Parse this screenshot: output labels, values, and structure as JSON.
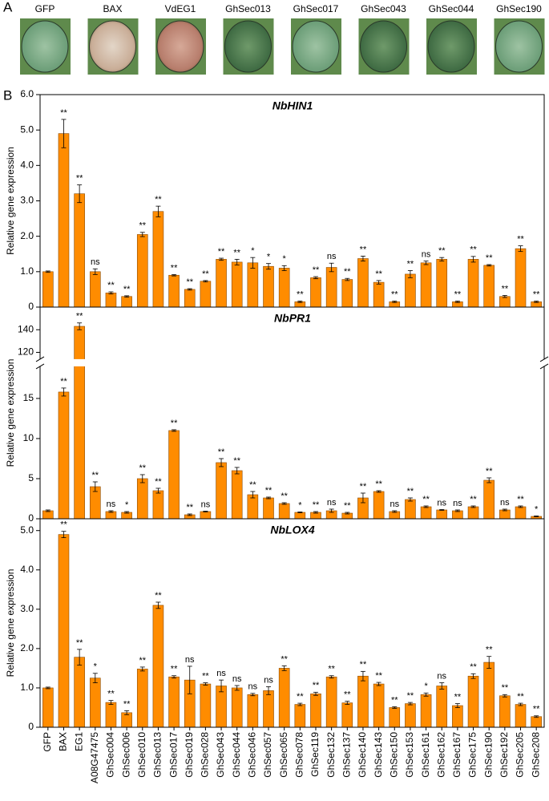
{
  "panel_labels": [
    "A",
    "B"
  ],
  "leaf_panel": {
    "labels": [
      "GFP",
      "BAX",
      "VdEG1",
      "GhSec013",
      "GhSec017",
      "GhSec043",
      "GhSec044",
      "GhSec190"
    ]
  },
  "chart_data": [
    {
      "type": "bar",
      "title": "NbHIN1",
      "y_label": "Relative gene expression",
      "color": "#ff8c00",
      "ylim": [
        0,
        6
      ],
      "yticks": [
        0,
        {
          "value": 1,
          "label": "1.0"
        },
        {
          "value": 2,
          "label": "2.0"
        },
        {
          "value": 3,
          "label": "3.0"
        },
        {
          "value": 4,
          "label": "4.0"
        },
        {
          "value": 5,
          "label": "5.0"
        },
        {
          "value": 6,
          "label": "6.0"
        }
      ],
      "values": [
        1.0,
        4.9,
        3.2,
        1.0,
        0.4,
        0.3,
        2.05,
        2.7,
        0.9,
        0.5,
        0.73,
        1.35,
        1.27,
        1.25,
        1.15,
        1.1,
        0.15,
        0.83,
        1.12,
        0.78,
        1.37,
        0.7,
        0.15,
        0.93,
        1.25,
        1.35,
        0.15,
        1.35,
        1.18,
        0.3,
        1.65,
        0.15
      ],
      "errors": [
        0.02,
        0.4,
        0.25,
        0.08,
        0.03,
        0.02,
        0.06,
        0.15,
        0.02,
        0.02,
        0.02,
        0.03,
        0.08,
        0.15,
        0.08,
        0.07,
        0.02,
        0.03,
        0.12,
        0.03,
        0.07,
        0.05,
        0.02,
        0.1,
        0.05,
        0.05,
        0.02,
        0.08,
        0.02,
        0.03,
        0.08,
        0.02
      ],
      "significance": [
        null,
        "**",
        "**",
        "ns",
        "**",
        "**",
        "**",
        "**",
        "**",
        "**",
        "**",
        "**",
        "**",
        "*",
        "*",
        "*",
        "**",
        "**",
        "ns",
        "**",
        "**",
        "**",
        "**",
        "**",
        "ns",
        "**",
        "**",
        "**",
        "**",
        "**",
        "**",
        "**"
      ]
    },
    {
      "type": "bar",
      "title": "NbPR1",
      "y_label": "Relative gene expression",
      "color": "#ff8c00",
      "ylim": [
        0,
        160
      ],
      "ybreak": [
        19,
        114
      ],
      "yticks": [
        0,
        5,
        10,
        15,
        120,
        140
      ],
      "values": [
        1.0,
        15.8,
        143,
        4.0,
        0.9,
        0.8,
        5.0,
        3.5,
        11.0,
        0.5,
        0.9,
        7.0,
        6.0,
        3.0,
        2.6,
        1.9,
        0.8,
        0.8,
        1.0,
        0.7,
        2.6,
        3.4,
        0.9,
        2.4,
        1.5,
        1.1,
        1.0,
        1.5,
        4.8,
        1.1,
        1.5,
        0.3
      ],
      "errors": [
        0.1,
        0.5,
        3,
        0.6,
        0.1,
        0.1,
        0.5,
        0.3,
        0.1,
        0.1,
        0.05,
        0.5,
        0.4,
        0.4,
        0.1,
        0.1,
        0.05,
        0.1,
        0.2,
        0.1,
        0.6,
        0.1,
        0.1,
        0.2,
        0.1,
        0.05,
        0.1,
        0.1,
        0.3,
        0.1,
        0.1,
        0.05
      ],
      "significance": [
        null,
        "**",
        "**",
        "**",
        "ns",
        "*",
        "**",
        "**",
        "**",
        "**",
        "ns",
        "**",
        "**",
        "**",
        "**",
        "**",
        "*",
        "**",
        "ns",
        "**",
        "**",
        "**",
        "ns",
        "**",
        "**",
        "ns",
        "ns",
        "**",
        "**",
        "ns",
        "**",
        "*"
      ]
    },
    {
      "type": "bar",
      "title": "NbLOX4",
      "y_label": "Relative gene expression",
      "color": "#ff8c00",
      "ylim": [
        0,
        5.3
      ],
      "yticks": [
        0,
        {
          "value": 1,
          "label": "1.0"
        },
        {
          "value": 2,
          "label": "2.0"
        },
        {
          "value": 3,
          "label": "3.0"
        },
        {
          "value": 4,
          "label": "4.0"
        },
        {
          "value": 5,
          "label": "5.0"
        }
      ],
      "categories": [
        "GFP",
        "BAX",
        "EG1",
        "A08G47475",
        "GhSec004",
        "GhSec006",
        "GhSec010",
        "GhSec013",
        "GhSec017",
        "GhSec019",
        "GhSec028",
        "GhSec043",
        "GhSec044",
        "GhSec046",
        "GhSec057",
        "GhSec065",
        "GhSec078",
        "GhSec119",
        "GhSec132",
        "GhSec137",
        "GhSec140",
        "GhSec143",
        "GhSec150",
        "GhSec153",
        "GhSec161",
        "GhSec162",
        "GhSec167",
        "GhSec175",
        "GhSec190",
        "GhSec192",
        "GhSec205",
        "GhSec208"
      ],
      "values": [
        1.0,
        4.9,
        1.78,
        1.25,
        0.63,
        0.37,
        1.48,
        3.1,
        1.28,
        1.2,
        1.1,
        1.05,
        1.0,
        0.83,
        0.93,
        1.5,
        0.58,
        0.85,
        1.28,
        0.62,
        1.3,
        1.1,
        0.5,
        0.6,
        0.83,
        1.05,
        0.55,
        1.3,
        1.65,
        0.8,
        0.58,
        0.27
      ],
      "errors": [
        0.02,
        0.08,
        0.2,
        0.12,
        0.05,
        0.05,
        0.05,
        0.08,
        0.03,
        0.35,
        0.03,
        0.15,
        0.06,
        0.03,
        0.1,
        0.06,
        0.03,
        0.04,
        0.03,
        0.04,
        0.12,
        0.04,
        0.02,
        0.03,
        0.04,
        0.08,
        0.05,
        0.06,
        0.15,
        0.03,
        0.03,
        0.02
      ],
      "significance": [
        null,
        "**",
        "**",
        "*",
        "**",
        "**",
        "**",
        "**",
        "**",
        "ns",
        "**",
        "ns",
        "ns",
        "ns",
        "ns",
        "**",
        "**",
        "**",
        "**",
        "**",
        "**",
        "**",
        "**",
        "**",
        "*",
        "ns",
        "**",
        "**",
        "**",
        "**",
        "**",
        "**"
      ]
    }
  ]
}
